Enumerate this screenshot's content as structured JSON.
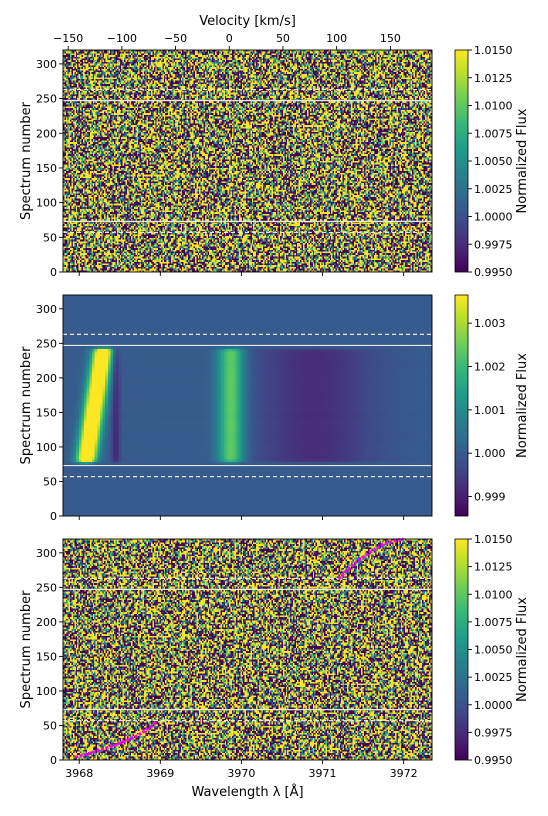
{
  "chart_data": [
    {
      "type": "heatmap",
      "panel": "top",
      "title": "",
      "xlabel": "",
      "ylabel": "Spectrum number",
      "xlim": [
        3967.8,
        3972.35
      ],
      "ylim": [
        0,
        320
      ],
      "x_ticks": [
        3968,
        3969,
        3970,
        3971,
        3972
      ],
      "x_tick_labels_shown": false,
      "y_ticks": [
        0,
        50,
        100,
        150,
        200,
        250,
        300
      ],
      "secondary_x_axis": {
        "label": "Velocity [km/s]",
        "ticks": [
          -150,
          -100,
          -50,
          0,
          50,
          100,
          150
        ],
        "position": "top"
      },
      "colormap": "viridis",
      "colorbar": {
        "label": "Normalized Flux",
        "range": [
          0.995,
          1.015
        ],
        "ticks": [
          0.995,
          0.9975,
          1.0,
          1.0025,
          1.005,
          1.0075,
          1.01,
          1.0125,
          1.015
        ],
        "tick_labels": [
          "0.9950",
          "0.9975",
          "1.0000",
          "1.0025",
          "1.0050",
          "1.0075",
          "1.0100",
          "1.0125",
          "1.0150"
        ]
      },
      "content": "noise-dominated residual flux",
      "hlines": [
        {
          "y": 73,
          "style": "solid"
        },
        {
          "y": 57,
          "style": "dashed"
        },
        {
          "y": 247,
          "style": "solid"
        },
        {
          "y": 263,
          "style": "dashed"
        }
      ]
    },
    {
      "type": "heatmap",
      "panel": "middle",
      "title": "",
      "xlabel": "",
      "ylabel": "Spectrum number",
      "xlim": [
        3967.8,
        3972.35
      ],
      "ylim": [
        0,
        320
      ],
      "x_ticks": [
        3968,
        3969,
        3970,
        3971,
        3972
      ],
      "x_tick_labels_shown": false,
      "y_ticks": [
        0,
        50,
        100,
        150,
        200,
        250,
        300
      ],
      "colormap": "viridis",
      "colorbar": {
        "label": "Normalized Flux",
        "range": [
          0.99855,
          1.00365
        ],
        "ticks": [
          0.999,
          1.0,
          1.001,
          1.002,
          1.003
        ],
        "tick_labels": [
          "0.999",
          "1.000",
          "1.001",
          "1.002",
          "1.003"
        ]
      },
      "background_value": 1.0,
      "features": [
        {
          "name": "strong emission streak",
          "x_start": 3968.08,
          "x_end": 3968.3,
          "y_start": 75,
          "y_end": 245,
          "peak_value": 1.0036
        },
        {
          "name": "moderate emission band",
          "x_center": 3969.87,
          "y_start": 75,
          "y_end": 245,
          "peak_value": 1.0025
        },
        {
          "name": "absorption trough",
          "x_start": 3970.0,
          "x_end": 3972.0,
          "y_start": 75,
          "y_end": 245,
          "min_value": 0.9992
        }
      ],
      "hlines": [
        {
          "y": 73,
          "style": "solid"
        },
        {
          "y": 57,
          "style": "dashed"
        },
        {
          "y": 247,
          "style": "solid"
        },
        {
          "y": 263,
          "style": "dashed"
        }
      ]
    },
    {
      "type": "heatmap",
      "panel": "bottom",
      "title": "",
      "xlabel": "Wavelength λ [Å]",
      "ylabel": "Spectrum number",
      "xlim": [
        3967.8,
        3972.35
      ],
      "ylim": [
        0,
        320
      ],
      "x_ticks": [
        3968,
        3969,
        3970,
        3971,
        3972
      ],
      "x_tick_labels": [
        "3968",
        "3969",
        "3970",
        "3971",
        "3972"
      ],
      "y_ticks": [
        0,
        50,
        100,
        150,
        200,
        250,
        300
      ],
      "colormap": "viridis",
      "colorbar": {
        "label": "Normalized Flux",
        "range": [
          0.995,
          1.015
        ],
        "ticks": [
          0.995,
          0.9975,
          1.0,
          1.0025,
          1.005,
          1.0075,
          1.01,
          1.0125,
          1.015
        ],
        "tick_labels": [
          "0.9950",
          "0.9975",
          "1.0000",
          "1.0025",
          "1.0050",
          "1.0075",
          "1.0100",
          "1.0125",
          "1.0150"
        ]
      },
      "content": "noise-dominated residual flux",
      "hlines": [
        {
          "y": 73,
          "style": "solid"
        },
        {
          "y": 57,
          "style": "dashed"
        },
        {
          "y": 247,
          "style": "solid"
        },
        {
          "y": 263,
          "style": "dashed"
        }
      ],
      "overlay_traces": [
        {
          "color": "#ff00ff",
          "points": [
            [
              3967.95,
              4
            ],
            [
              3968.2,
              12
            ],
            [
              3968.45,
              22
            ],
            [
              3968.7,
              34
            ],
            [
              3968.85,
              45
            ],
            [
              3968.95,
              55
            ]
          ]
        },
        {
          "color": "#ff00ff",
          "points": [
            [
              3971.2,
              262
            ],
            [
              3971.3,
              275
            ],
            [
              3971.45,
              290
            ],
            [
              3971.6,
              302
            ],
            [
              3971.75,
              312
            ],
            [
              3971.9,
              318
            ],
            [
              3972.0,
              320
            ]
          ]
        }
      ]
    }
  ]
}
